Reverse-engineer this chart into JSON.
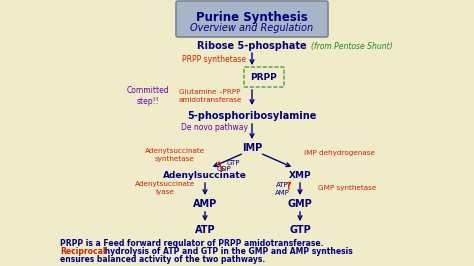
{
  "bg_color": "#f0ecca",
  "title_box_color": "#a8b4c8",
  "title_border_color": "#808098",
  "title_text": "Purine Synthesis",
  "title_subtitle": "Overview and Regulation",
  "node_color": "#000080",
  "enzyme_color": "#cc2200",
  "purple_color": "#6600aa",
  "green_color": "#228822",
  "red_color": "#cc2200",
  "footer1": "PRPP is a Feed forward regulator of PRPP amidotransferase.",
  "footer2a": "Reciprocal",
  "footer2b": " hydrolysis of ATP and GTP in the GMP and AMP synthesis",
  "footer3": "ensures balanced activity of the two pathways.",
  "black_color": "#111111"
}
